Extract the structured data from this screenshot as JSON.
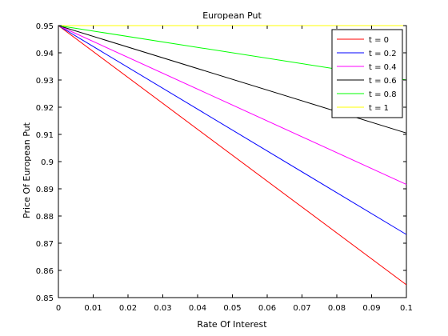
{
  "chart_data": {
    "type": "line",
    "title": "European Put",
    "xlabel": "Rate Of Interest",
    "ylabel": "Price Of European Put",
    "xlim": [
      0,
      0.1
    ],
    "ylim": [
      0.85,
      0.95
    ],
    "xticks": [
      0,
      0.01,
      0.02,
      0.03,
      0.04,
      0.05,
      0.06,
      0.07,
      0.08,
      0.09,
      0.1
    ],
    "yticks": [
      0.85,
      0.86,
      0.87,
      0.88,
      0.89,
      0.9,
      0.91,
      0.92,
      0.93,
      0.94,
      0.95
    ],
    "xtick_labels": [
      "0",
      "0.01",
      "0.02",
      "0.03",
      "0.04",
      "0.05",
      "0.06",
      "0.07",
      "0.08",
      "0.09",
      "0.1"
    ],
    "ytick_labels": [
      "0.85",
      "0.86",
      "0.87",
      "0.88",
      "0.89",
      "0.9",
      "0.91",
      "0.92",
      "0.93",
      "0.94",
      "0.95"
    ],
    "grid": false,
    "legend_position": "top-right",
    "series": [
      {
        "name": "t = 0",
        "color": "#ff0000",
        "x": [
          0,
          0.1
        ],
        "y": [
          0.95,
          0.8547
        ]
      },
      {
        "name": "t = 0.2",
        "color": "#0000ff",
        "x": [
          0,
          0.1
        ],
        "y": [
          0.95,
          0.8732
        ]
      },
      {
        "name": "t = 0.4",
        "color": "#ff00ff",
        "x": [
          0,
          0.1
        ],
        "y": [
          0.95,
          0.8916
        ]
      },
      {
        "name": "t = 0.6",
        "color": "#000000",
        "x": [
          0,
          0.1
        ],
        "y": [
          0.95,
          0.9105
        ]
      },
      {
        "name": "t = 0.8",
        "color": "#00ff00",
        "x": [
          0,
          0.1
        ],
        "y": [
          0.95,
          0.93
        ]
      },
      {
        "name": "t = 1",
        "color": "#ffff00",
        "x": [
          0,
          0.1
        ],
        "y": [
          0.95,
          0.95
        ]
      }
    ]
  }
}
